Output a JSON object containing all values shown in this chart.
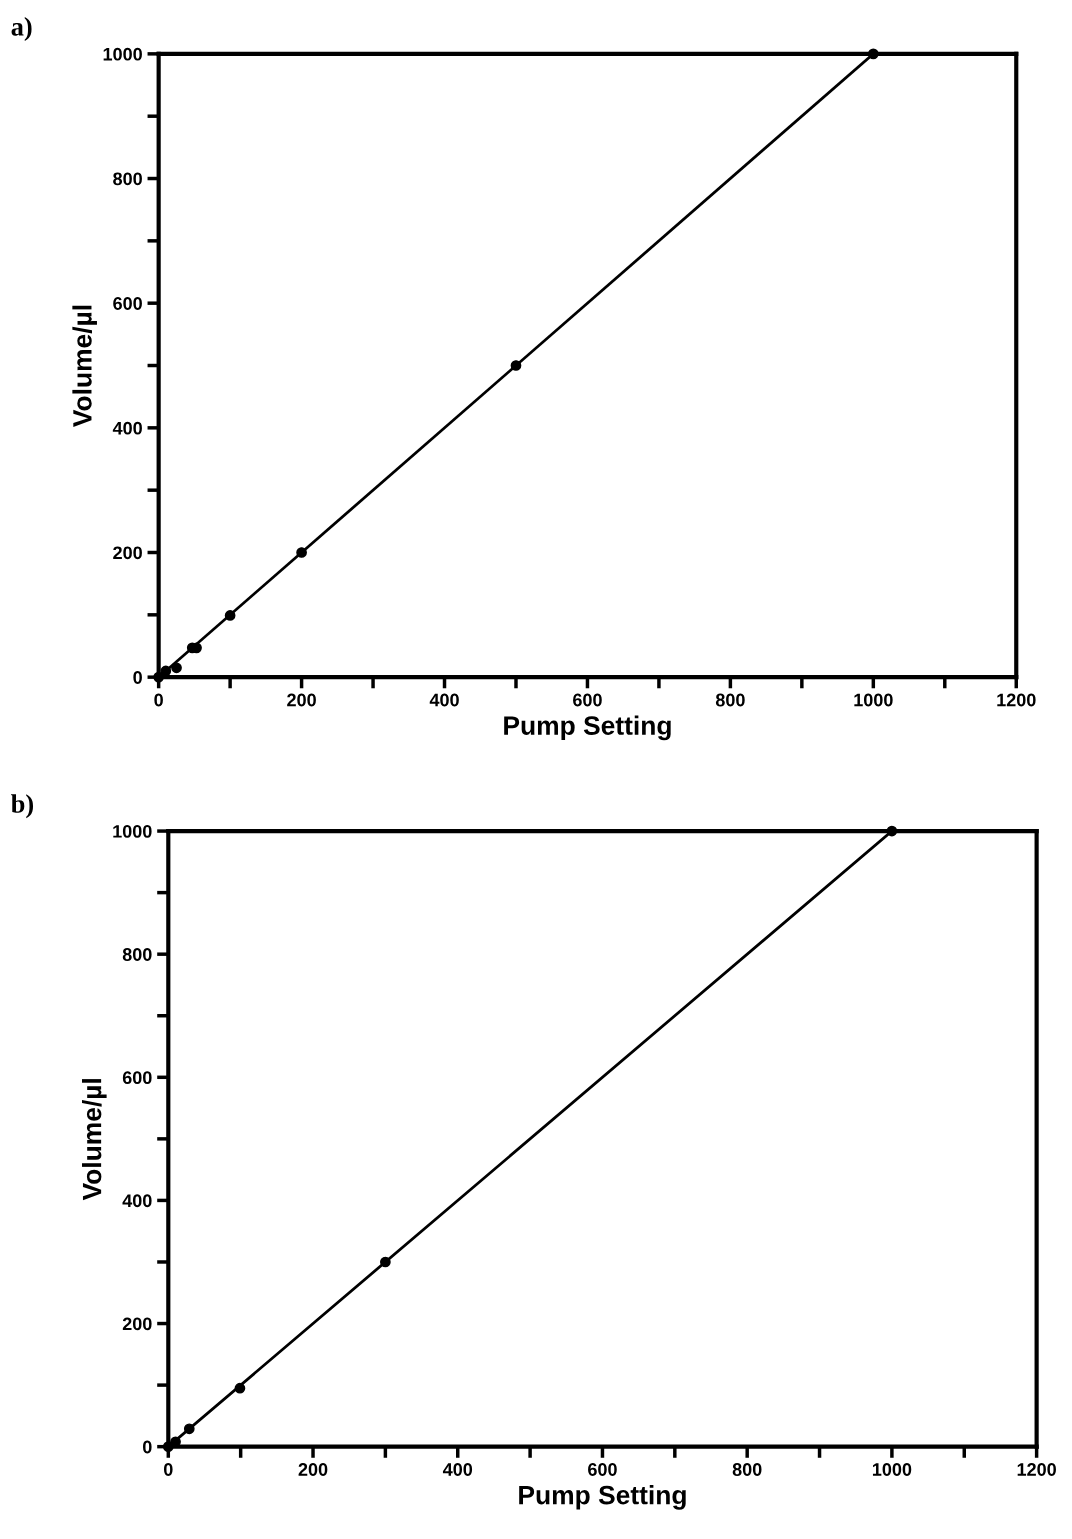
{
  "chart_data": [
    {
      "type": "scatter",
      "title": "a)",
      "xlabel": "Pump Setting",
      "ylabel": "Volume/µl",
      "marker": "circle",
      "grid": false,
      "legend": false,
      "xlim": [
        0,
        1200
      ],
      "ylim": [
        0,
        1000
      ],
      "xticks": [
        0,
        {
          "value": 100,
          "label": null
        },
        200,
        {
          "value": 300,
          "label": null
        },
        400,
        {
          "value": 500,
          "label": null
        },
        600,
        {
          "value": 700,
          "label": null
        },
        800,
        {
          "value": 900,
          "label": null
        },
        1000,
        {
          "value": 1100,
          "label": null
        },
        1200
      ],
      "yticks": [
        0,
        {
          "value": 100,
          "label": null
        },
        200,
        {
          "value": 300,
          "label": null
        },
        400,
        {
          "value": 500,
          "label": null
        },
        600,
        {
          "value": 700,
          "label": null
        },
        800,
        {
          "value": 900,
          "label": null
        },
        1000
      ],
      "series": [
        {
          "color": "#000000",
          "x": [
            0,
            10,
            25,
            47,
            53,
            100,
            200,
            500,
            1000
          ],
          "values": [
            0,
            10,
            15,
            47,
            47,
            99,
            200,
            500,
            1000
          ]
        },
        {
          "type": "line",
          "color": "#000000",
          "line_style": "solid",
          "marker": "none",
          "x": [
            0,
            1000
          ],
          "values": [
            0,
            1000
          ]
        }
      ]
    },
    {
      "type": "scatter",
      "title": "b)",
      "xlabel": "Pump Setting",
      "ylabel": "Volume/µl",
      "marker": "circle",
      "grid": false,
      "legend": false,
      "xlim": [
        0,
        1200
      ],
      "ylim": [
        0,
        1000
      ],
      "xticks": [
        0,
        {
          "value": 100,
          "label": null
        },
        200,
        {
          "value": 300,
          "label": null
        },
        400,
        {
          "value": 500,
          "label": null
        },
        600,
        {
          "value": 700,
          "label": null
        },
        800,
        {
          "value": 900,
          "label": null
        },
        1000,
        {
          "value": 1100,
          "label": null
        },
        1200
      ],
      "yticks": [
        0,
        {
          "value": 100,
          "label": null
        },
        200,
        {
          "value": 300,
          "label": null
        },
        400,
        {
          "value": 500,
          "label": null
        },
        600,
        {
          "value": 700,
          "label": null
        },
        800,
        {
          "value": 900,
          "label": null
        },
        1000
      ],
      "series": [
        {
          "color": "#000000",
          "x": [
            0,
            10,
            29,
            99,
            300,
            1000
          ],
          "values": [
            0,
            8,
            29,
            95,
            300,
            1000
          ]
        },
        {
          "type": "line",
          "color": "#000000",
          "line_style": "solid",
          "marker": "none",
          "x": [
            0,
            1000
          ],
          "values": [
            0,
            1000
          ]
        }
      ]
    }
  ]
}
